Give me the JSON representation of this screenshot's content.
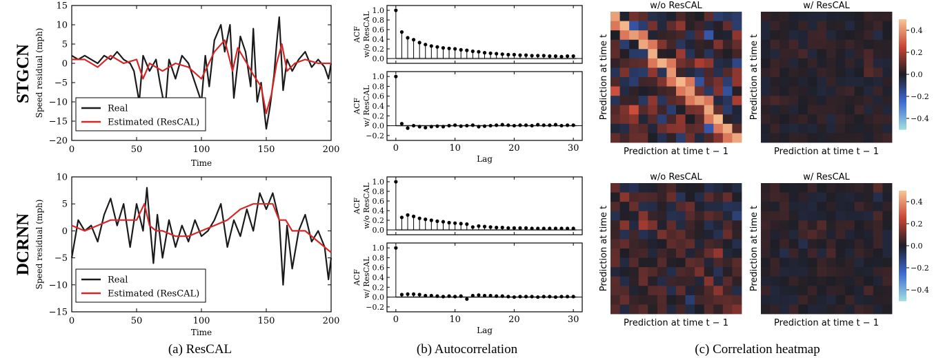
{
  "captions": {
    "a": "(a) ResCAL",
    "b": "(b) Autocorrelation",
    "c": "(c) Correlation heatmap"
  },
  "chart_data": [
    {
      "id": "stgcn-residual",
      "type": "line",
      "row_label": "STGCN",
      "xlabel": "Time",
      "ylabel": "Speed residual (mph)",
      "xlim": [
        0,
        200
      ],
      "ylim": [
        -20,
        15
      ],
      "xticks": [
        0,
        50,
        100,
        150,
        200
      ],
      "yticks": [
        -20,
        -15,
        -10,
        -5,
        0,
        5,
        10,
        15
      ],
      "legend": "bottom-left",
      "series": [
        {
          "name": "Real",
          "color": "#1a1a1a",
          "x": [
            0,
            5,
            10,
            15,
            20,
            25,
            30,
            35,
            40,
            45,
            48,
            52,
            55,
            60,
            65,
            68,
            72,
            75,
            80,
            85,
            90,
            95,
            100,
            103,
            106,
            110,
            115,
            118,
            122,
            125,
            128,
            130,
            134,
            138,
            140,
            143,
            146,
            150,
            153,
            156,
            158,
            160,
            163,
            166,
            170,
            175,
            180,
            185,
            190,
            195,
            198,
            200
          ],
          "y": [
            2,
            1,
            2,
            1,
            0,
            2,
            1,
            3,
            1,
            0,
            -2,
            -10,
            2,
            -2,
            1,
            -5,
            -12,
            1,
            -4,
            2,
            0,
            -5,
            -10,
            2,
            -6,
            6,
            10,
            3,
            10,
            -9,
            0,
            7,
            3,
            -6,
            9,
            -10,
            -5,
            -17,
            -11,
            -3,
            5,
            12,
            -7,
            1,
            -2,
            1,
            3,
            -1,
            1,
            -1,
            -4,
            0
          ]
        },
        {
          "name": "Estimated (ResCAL)",
          "color": "#d62728",
          "x": [
            0,
            10,
            20,
            30,
            40,
            50,
            55,
            60,
            70,
            80,
            90,
            100,
            110,
            118,
            124,
            128,
            135,
            140,
            146,
            150,
            154,
            158,
            162,
            166,
            172,
            180,
            190,
            200
          ],
          "y": [
            1,
            1,
            -1,
            2,
            0,
            1,
            -4,
            0,
            -2,
            0,
            -1,
            -4,
            3,
            6,
            -2,
            4,
            0,
            -3,
            -6,
            -13,
            -8,
            0,
            5,
            -2,
            0,
            1,
            0,
            0
          ]
        }
      ]
    },
    {
      "id": "dcrnn-residual",
      "type": "line",
      "row_label": "DCRNN",
      "xlabel": "Time",
      "ylabel": "Speed residual (mph)",
      "xlim": [
        0,
        200
      ],
      "ylim": [
        -15,
        10
      ],
      "xticks": [
        0,
        50,
        100,
        150,
        200
      ],
      "yticks": [
        -15,
        -10,
        -5,
        0,
        5,
        10
      ],
      "legend": "bottom-left",
      "series": [
        {
          "name": "Real",
          "color": "#1a1a1a",
          "x": [
            0,
            5,
            10,
            15,
            20,
            25,
            30,
            35,
            40,
            45,
            50,
            55,
            58,
            60,
            63,
            66,
            70,
            75,
            80,
            85,
            90,
            95,
            100,
            105,
            110,
            115,
            120,
            125,
            130,
            135,
            140,
            145,
            150,
            155,
            160,
            163,
            166,
            170,
            175,
            180,
            185,
            190,
            195,
            198,
            200
          ],
          "y": [
            -5,
            2,
            0,
            1,
            -2,
            3,
            6,
            1,
            5,
            -3,
            5,
            0,
            8,
            2,
            -6,
            3,
            -5,
            2,
            -3,
            1,
            -2,
            2,
            -1,
            0,
            2,
            5,
            -3,
            2,
            -1,
            4,
            0,
            7,
            4,
            7,
            2,
            -10,
            1,
            -7,
            0,
            3,
            -2,
            0,
            -3,
            -9,
            -5
          ]
        },
        {
          "name": "Estimated (ResCAL)",
          "color": "#d62728",
          "x": [
            0,
            10,
            20,
            30,
            40,
            50,
            56,
            60,
            65,
            70,
            80,
            90,
            100,
            110,
            120,
            130,
            140,
            150,
            155,
            160,
            165,
            170,
            180,
            190,
            200
          ],
          "y": [
            1,
            0,
            1,
            2,
            2,
            2,
            5,
            1,
            0,
            0,
            -1,
            -1,
            0,
            1,
            2,
            4,
            5,
            5,
            5,
            2,
            2,
            0,
            0,
            -2,
            -4
          ]
        }
      ]
    },
    {
      "id": "stgcn-acf-without",
      "type": "scatter",
      "style": "stem",
      "ylabel": "ACF\nw/o ResCAL",
      "xlim": [
        -1.5,
        31.5
      ],
      "ylim": [
        -0.1,
        1.1
      ],
      "yticks": [
        0.0,
        0.2,
        0.4,
        0.6,
        0.8,
        1.0
      ],
      "values": [
        1.0,
        0.55,
        0.43,
        0.39,
        0.33,
        0.29,
        0.26,
        0.24,
        0.22,
        0.21,
        0.2,
        0.18,
        0.17,
        0.15,
        0.14,
        0.12,
        0.11,
        0.1,
        0.09,
        0.08,
        0.08,
        0.07,
        0.07,
        0.06,
        0.06,
        0.06,
        0.05,
        0.05,
        0.04,
        0.05,
        0.05
      ]
    },
    {
      "id": "stgcn-acf-with",
      "type": "scatter",
      "style": "stem",
      "xlabel": "Lag",
      "ylabel": "ACF\nw/ ResCAL",
      "xlim": [
        -1.5,
        31.5
      ],
      "ylim": [
        -0.3,
        1.1
      ],
      "xticks": [
        0,
        10,
        20,
        30
      ],
      "yticks": [
        -0.2,
        0.0,
        0.2,
        0.4,
        0.6,
        0.8,
        1.0
      ],
      "values": [
        1.0,
        0.04,
        -0.05,
        0.0,
        -0.02,
        -0.04,
        -0.02,
        -0.01,
        -0.02,
        0.0,
        0.01,
        -0.01,
        0.0,
        0.01,
        -0.02,
        -0.01,
        0.0,
        0.01,
        0.02,
        0.01,
        0.0,
        0.01,
        0.01,
        0.0,
        0.02,
        0.01,
        0.01,
        0.02,
        0.0,
        0.01,
        0.01
      ]
    },
    {
      "id": "dcrnn-acf-without",
      "type": "scatter",
      "style": "stem",
      "ylabel": "ACF\nw/o ResCAL",
      "xlim": [
        -1.5,
        31.5
      ],
      "ylim": [
        -0.1,
        1.1
      ],
      "yticks": [
        0.0,
        0.2,
        0.4,
        0.6,
        0.8,
        1.0
      ],
      "values": [
        1.0,
        0.26,
        0.31,
        0.28,
        0.24,
        0.22,
        0.2,
        0.18,
        0.17,
        0.15,
        0.14,
        0.13,
        0.12,
        0.06,
        0.08,
        0.07,
        0.06,
        0.05,
        0.05,
        0.04,
        0.04,
        0.04,
        0.04,
        0.03,
        0.03,
        0.03,
        0.03,
        0.03,
        0.03,
        0.03,
        0.03
      ]
    },
    {
      "id": "dcrnn-acf-with",
      "type": "scatter",
      "style": "stem",
      "xlabel": "Lag",
      "ylabel": "ACF\nw/ ResCAL",
      "xlim": [
        -1.5,
        31.5
      ],
      "ylim": [
        -0.3,
        1.1
      ],
      "xticks": [
        0,
        10,
        20,
        30
      ],
      "yticks": [
        -0.2,
        0.0,
        0.2,
        0.4,
        0.6,
        0.8,
        1.0
      ],
      "values": [
        1.0,
        0.05,
        0.06,
        0.06,
        0.05,
        0.03,
        0.03,
        0.02,
        0.01,
        0.02,
        0.01,
        0.02,
        -0.04,
        0.03,
        0.04,
        0.03,
        0.03,
        0.02,
        0.02,
        0.01,
        0.0,
        0.01,
        0.01,
        0.01,
        0.0,
        0.01,
        0.01,
        0.0,
        0.01,
        0.01,
        0.01
      ]
    },
    {
      "id": "stgcn-heatmap-without",
      "type": "heatmap",
      "title": "w/o ResCAL",
      "xlabel": "Prediction at time t − 1",
      "ylabel": "Prediction at time t",
      "size": 14,
      "pattern": "strong diagonal plus scattered positive/negative cells",
      "diagonal_value": 0.45,
      "offdiag_scale": 0.28,
      "seed": 11
    },
    {
      "id": "stgcn-heatmap-with",
      "type": "heatmap",
      "title": "w/ ResCAL",
      "xlabel": "Prediction at time t − 1",
      "ylabel": "Prediction at time t",
      "size": 14,
      "diagonal_value": 0.05,
      "offdiag_scale": 0.08,
      "seed": 23
    },
    {
      "id": "dcrnn-heatmap-without",
      "type": "heatmap",
      "title": "w/o ResCAL",
      "xlabel": "Prediction at time t − 1",
      "ylabel": "Prediction at time t",
      "size": 14,
      "diagonal_value": 0.12,
      "offdiag_scale": 0.18,
      "seed": 37
    },
    {
      "id": "dcrnn-heatmap-with",
      "type": "heatmap",
      "title": "w/ ResCAL",
      "xlabel": "Prediction at time t − 1",
      "ylabel": "Prediction at time t",
      "size": 14,
      "diagonal_value": 0.04,
      "offdiag_scale": 0.08,
      "seed": 51
    },
    {
      "id": "colorbars",
      "type": "heatmap",
      "role": "colorbar",
      "range": [
        -0.5,
        0.5
      ],
      "ticks": [
        0.4,
        0.2,
        0.0,
        -0.2,
        -0.4
      ],
      "colors": [
        "#9fdcdc",
        "#3b6fd6",
        "#1f2030",
        "#c94a3a",
        "#f6c495"
      ]
    }
  ]
}
